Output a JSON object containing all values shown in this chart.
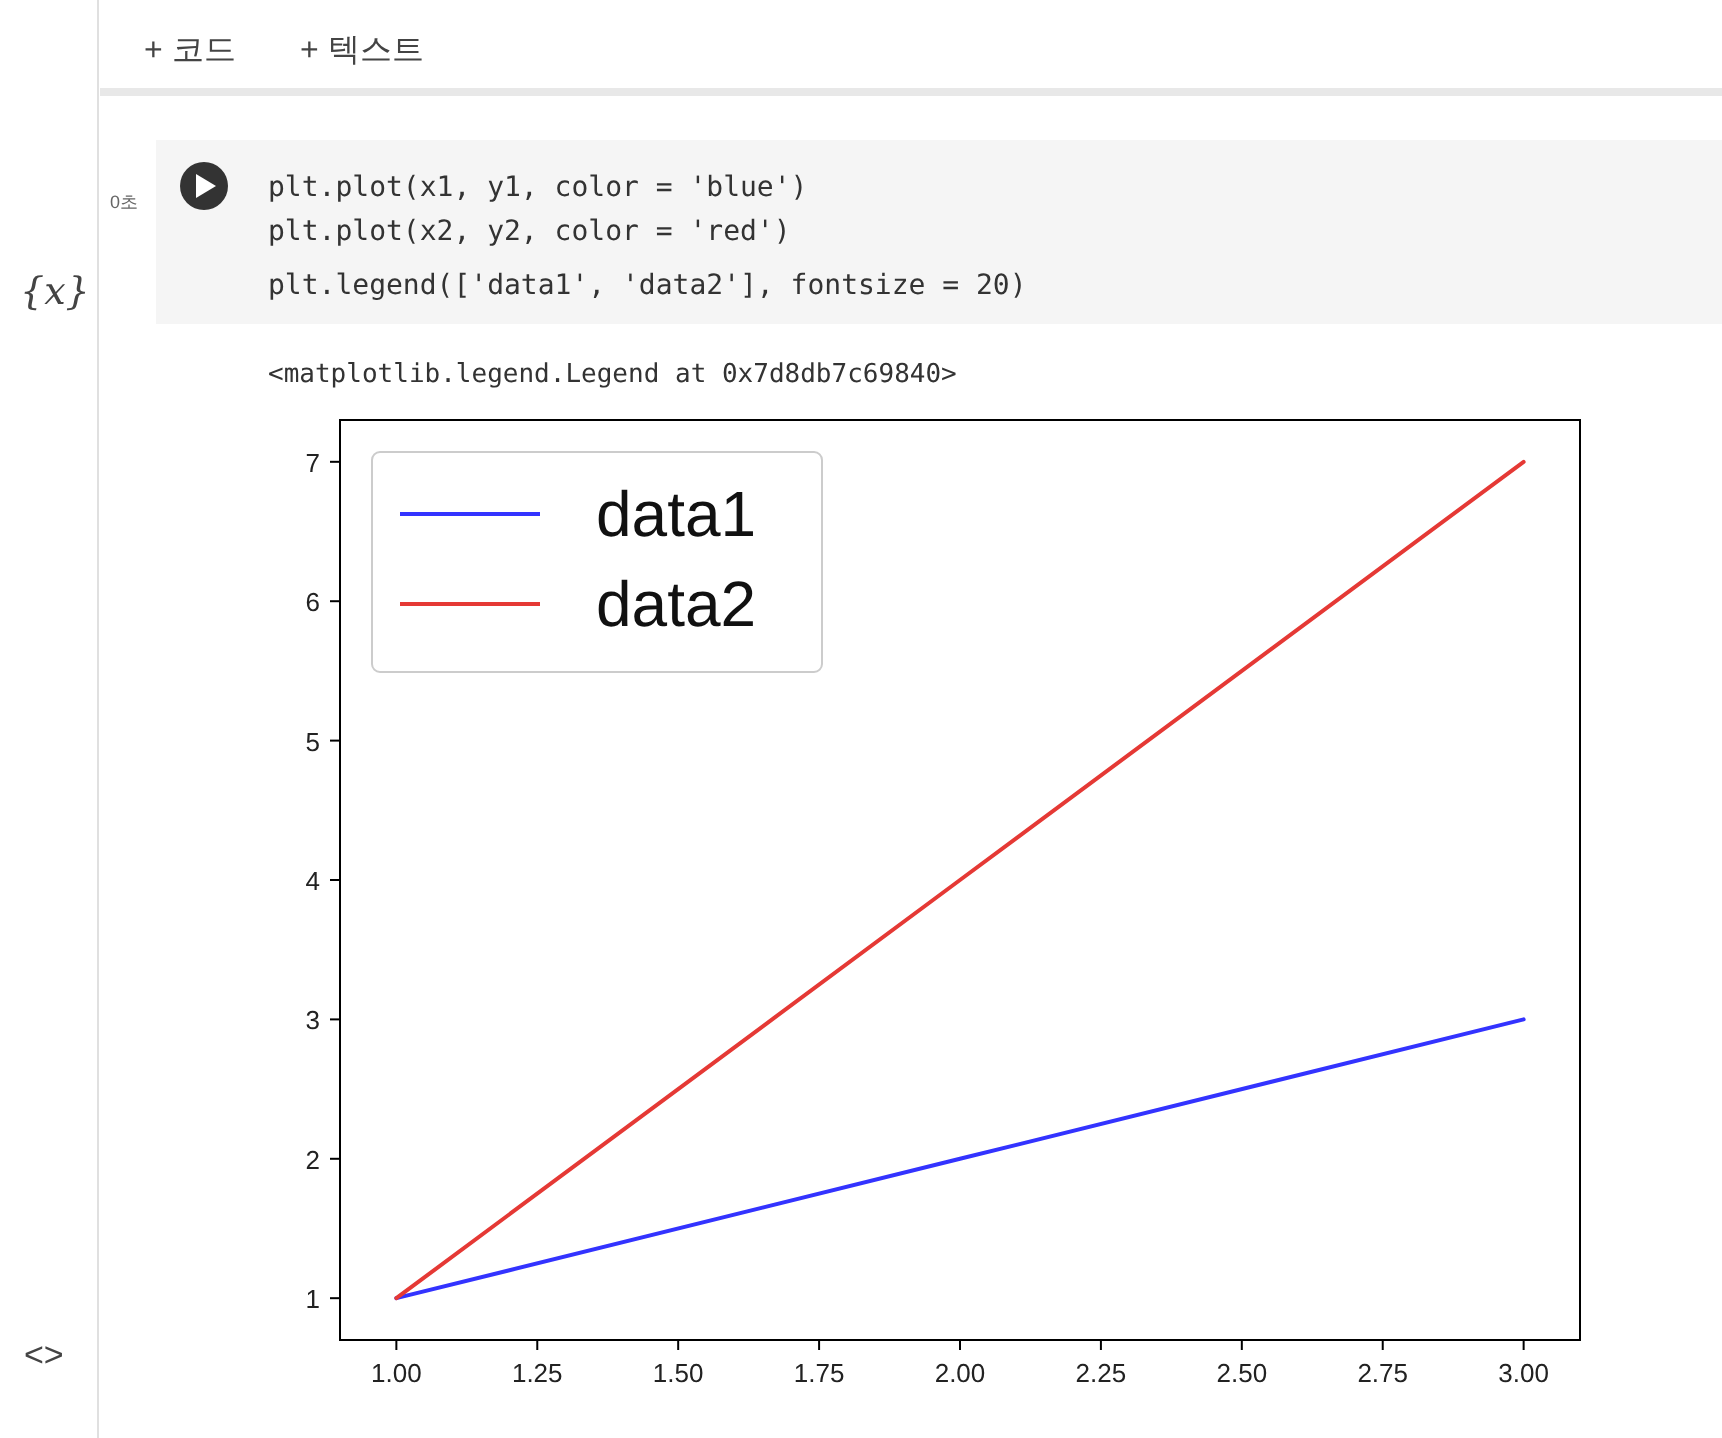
{
  "chart_data": {
    "type": "line",
    "annotations": [
      "+ 코드",
      "+ 텍스트",
      "0초",
      "plt.plot(x1, y1, color = 'blue')",
      "plt.plot(x2, y2, color = 'red')",
      "plt.legend(['data1', 'data2'], fontsize = 20)",
      "<matplotlib.legend.Legend at 0x7d8db7c69840>",
      "{x}",
      "<>"
    ],
    "x": [
      1,
      2,
      3
    ],
    "series": [
      {
        "name": "data1",
        "color": "#3333ff",
        "values": [
          1,
          2,
          3
        ]
      },
      {
        "name": "data2",
        "color": "#e53935",
        "values": [
          1,
          4,
          7
        ]
      }
    ],
    "xlim": [
      0.9,
      3.1
    ],
    "ylim": [
      0.7,
      7.3
    ],
    "xticks": [
      {
        "value": 1,
        "label": "1.00"
      },
      {
        "value": 1.25,
        "label": "1.25"
      },
      {
        "value": 1.5,
        "label": "1.50"
      },
      {
        "value": 1.75,
        "label": "1.75"
      },
      {
        "value": 2,
        "label": "2.00"
      },
      {
        "value": 2.25,
        "label": "2.25"
      },
      {
        "value": 2.5,
        "label": "2.50"
      },
      {
        "value": 2.75,
        "label": "2.75"
      },
      {
        "value": 3,
        "label": "3.00"
      }
    ],
    "yticks": [
      1,
      2,
      3,
      4,
      5,
      6,
      7
    ],
    "legend": "top left",
    "grid": false,
    "marker": "none",
    "line_style": "solid"
  }
}
